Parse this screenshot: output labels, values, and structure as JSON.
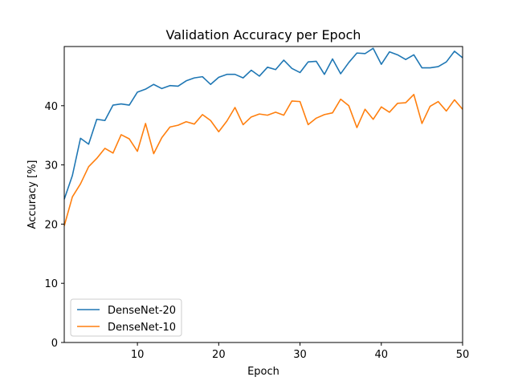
{
  "chart_data": {
    "type": "line",
    "title": "Validation Accuracy per Epoch",
    "xlabel": "Epoch",
    "ylabel": "Accuracy [%]",
    "xlim": [
      1,
      50
    ],
    "ylim": [
      0,
      50
    ],
    "xticks": [
      10,
      20,
      30,
      40,
      50
    ],
    "yticks": [
      0,
      10,
      20,
      30,
      40
    ],
    "grid": false,
    "legend_position": "lower-left",
    "x": [
      1,
      2,
      3,
      4,
      5,
      6,
      7,
      8,
      9,
      10,
      11,
      12,
      13,
      14,
      15,
      16,
      17,
      18,
      19,
      20,
      21,
      22,
      23,
      24,
      25,
      26,
      27,
      28,
      29,
      30,
      31,
      32,
      33,
      34,
      35,
      36,
      37,
      38,
      39,
      40,
      41,
      42,
      43,
      44,
      45,
      46,
      47,
      48,
      49,
      50
    ],
    "series": [
      {
        "name": "DenseNet-20",
        "color": "#1f77b4",
        "values": [
          24.2,
          28.2,
          34.5,
          33.5,
          37.7,
          37.5,
          40.1,
          40.3,
          40.1,
          42.3,
          42.8,
          43.6,
          42.9,
          43.4,
          43.3,
          44.2,
          44.7,
          44.9,
          43.6,
          44.8,
          45.3,
          45.3,
          44.7,
          46.0,
          45.0,
          46.5,
          46.1,
          47.7,
          46.3,
          45.6,
          47.4,
          47.5,
          45.3,
          47.9,
          45.4,
          47.3,
          48.9,
          48.8,
          49.7,
          47.0,
          49.1,
          48.6,
          47.8,
          48.6,
          46.4,
          46.4,
          46.6,
          47.4,
          49.2,
          48.1
        ]
      },
      {
        "name": "DenseNet-10",
        "color": "#ff7f0e",
        "values": [
          19.7,
          24.6,
          26.8,
          29.7,
          31.1,
          32.8,
          32.0,
          35.1,
          34.4,
          32.3,
          37.0,
          31.9,
          34.6,
          36.4,
          36.7,
          37.3,
          36.9,
          38.5,
          37.5,
          35.6,
          37.4,
          39.7,
          36.8,
          38.1,
          38.6,
          38.4,
          38.9,
          38.4,
          40.8,
          40.7,
          36.8,
          37.9,
          38.5,
          38.8,
          41.1,
          40.0,
          36.3,
          39.4,
          37.7,
          39.8,
          38.9,
          40.4,
          40.5,
          41.9,
          37.0,
          39.9,
          40.7,
          39.1,
          41.0,
          39.4
        ]
      }
    ]
  }
}
